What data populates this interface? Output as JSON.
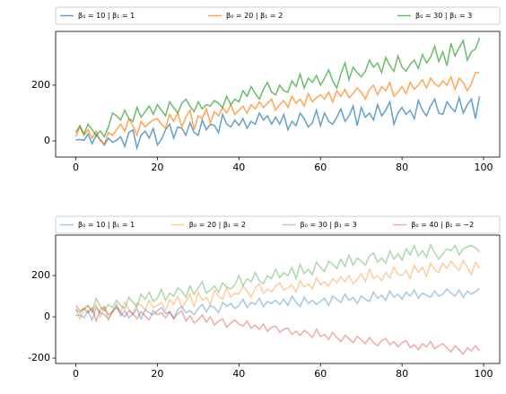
{
  "chart_data": [
    {
      "type": "line",
      "x": [
        0,
        1,
        2,
        3,
        4,
        5,
        6,
        7,
        8,
        9,
        10,
        11,
        12,
        13,
        14,
        15,
        16,
        17,
        18,
        19,
        20,
        21,
        22,
        23,
        24,
        25,
        26,
        27,
        28,
        29,
        30,
        31,
        32,
        33,
        34,
        35,
        36,
        37,
        38,
        39,
        40,
        41,
        42,
        43,
        44,
        45,
        46,
        47,
        48,
        49,
        50,
        51,
        52,
        53,
        54,
        55,
        56,
        57,
        58,
        59,
        60,
        61,
        62,
        63,
        64,
        65,
        66,
        67,
        68,
        69,
        70,
        71,
        72,
        73,
        74,
        75,
        76,
        77,
        78,
        79,
        80,
        81,
        82,
        83,
        84,
        85,
        86,
        87,
        88,
        89,
        90,
        91,
        92,
        93,
        94,
        95,
        96,
        97,
        98,
        99
      ],
      "series": [
        {
          "name": "β₀ = 10 | β₁ = 1",
          "color": "#1f77b4",
          "opacity": 0.7,
          "values": [
            3,
            5,
            2,
            25,
            -10,
            20,
            5,
            -15,
            10,
            -5,
            2,
            15,
            -20,
            30,
            40,
            -25,
            20,
            35,
            10,
            45,
            -15,
            5,
            40,
            60,
            10,
            50,
            45,
            20,
            65,
            30,
            20,
            75,
            40,
            60,
            55,
            30,
            95,
            60,
            50,
            75,
            55,
            80,
            45,
            70,
            60,
            100,
            75,
            90,
            60,
            85,
            60,
            95,
            40,
            70,
            55,
            100,
            80,
            50,
            65,
            110,
            55,
            100,
            70,
            60,
            85,
            115,
            70,
            90,
            125,
            55,
            120,
            85,
            100,
            75,
            130,
            90,
            110,
            140,
            60,
            100,
            120,
            95,
            110,
            80,
            145,
            110,
            90,
            125,
            150,
            100,
            95,
            140,
            120,
            105,
            155,
            100,
            130,
            150,
            80,
            160
          ]
        },
        {
          "name": "β₀ = 20 | β₁ = 2",
          "color": "#ff7f0e",
          "opacity": 0.7,
          "values": [
            15,
            50,
            20,
            40,
            10,
            35,
            0,
            -10,
            30,
            20,
            40,
            60,
            35,
            80,
            55,
            20,
            70,
            50,
            65,
            75,
            80,
            60,
            45,
            95,
            70,
            100,
            50,
            85,
            110,
            40,
            90,
            80,
            115,
            65,
            105,
            90,
            120,
            100,
            130,
            95,
            110,
            125,
            100,
            130,
            115,
            140,
            120,
            135,
            150,
            110,
            130,
            145,
            120,
            160,
            135,
            150,
            125,
            170,
            140,
            155,
            165,
            150,
            175,
            140,
            180,
            160,
            185,
            155,
            170,
            190,
            175,
            150,
            185,
            200,
            165,
            195,
            180,
            210,
            160,
            175,
            195,
            170,
            210,
            185,
            200,
            220,
            190,
            225,
            205,
            195,
            215,
            200,
            230,
            185,
            225,
            210,
            180,
            205,
            245,
            245
          ]
        },
        {
          "name": "β₀ = 30 | β₁ = 3",
          "color": "#2ca02c",
          "opacity": 0.7,
          "values": [
            30,
            55,
            25,
            60,
            40,
            20,
            35,
            15,
            50,
            100,
            90,
            75,
            110,
            80,
            70,
            120,
            85,
            105,
            125,
            95,
            130,
            110,
            90,
            140,
            120,
            100,
            135,
            150,
            125,
            105,
            140,
            115,
            130,
            125,
            145,
            135,
            120,
            160,
            130,
            150,
            140,
            180,
            160,
            195,
            170,
            150,
            185,
            210,
            175,
            165,
            200,
            180,
            175,
            215,
            195,
            240,
            190,
            225,
            210,
            235,
            200,
            225,
            255,
            215,
            190,
            240,
            280,
            220,
            265,
            245,
            230,
            250,
            290,
            265,
            280,
            245,
            300,
            270,
            250,
            305,
            265,
            250,
            275,
            290,
            260,
            310,
            280,
            300,
            340,
            285,
            320,
            270,
            350,
            305,
            335,
            360,
            290,
            320,
            330,
            370
          ]
        }
      ],
      "xlim": [
        -4.95,
        103.95
      ],
      "ylim": [
        -58,
        393
      ],
      "xticks": [
        0,
        20,
        40,
        60,
        80,
        100
      ],
      "yticks": [
        0,
        200
      ],
      "legend": "top"
    },
    {
      "type": "line",
      "x": [
        0,
        1,
        2,
        3,
        4,
        5,
        6,
        7,
        8,
        9,
        10,
        11,
        12,
        13,
        14,
        15,
        16,
        17,
        18,
        19,
        20,
        21,
        22,
        23,
        24,
        25,
        26,
        27,
        28,
        29,
        30,
        31,
        32,
        33,
        34,
        35,
        36,
        37,
        38,
        39,
        40,
        41,
        42,
        43,
        44,
        45,
        46,
        47,
        48,
        49,
        50,
        51,
        52,
        53,
        54,
        55,
        56,
        57,
        58,
        59,
        60,
        61,
        62,
        63,
        64,
        65,
        66,
        67,
        68,
        69,
        70,
        71,
        72,
        73,
        74,
        75,
        76,
        77,
        78,
        79,
        80,
        81,
        82,
        83,
        84,
        85,
        86,
        87,
        88,
        89,
        90,
        91,
        92,
        93,
        94,
        95,
        96,
        97,
        98,
        99
      ],
      "series": [
        {
          "name": "β₀ = 10 | β₁ = 1",
          "color": "#1f77b4",
          "opacity": 0.4,
          "values": [
            5,
            10,
            -5,
            30,
            -15,
            45,
            20,
            10,
            -10,
            25,
            60,
            5,
            30,
            -5,
            15,
            40,
            -10,
            35,
            20,
            10,
            30,
            45,
            15,
            25,
            -5,
            35,
            50,
            20,
            30,
            10,
            40,
            60,
            25,
            55,
            45,
            20,
            70,
            50,
            65,
            40,
            55,
            85,
            45,
            70,
            60,
            90,
            50,
            75,
            65,
            80,
            60,
            85,
            55,
            100,
            70,
            50,
            95,
            65,
            80,
            60,
            75,
            90,
            55,
            100,
            85,
            70,
            110,
            80,
            95,
            65,
            100,
            85,
            75,
            120,
            90,
            105,
            80,
            125,
            95,
            110,
            85,
            120,
            100,
            130,
            90,
            115,
            105,
            95,
            125,
            100,
            110,
            135,
            115,
            100,
            130,
            95,
            125,
            110,
            120,
            140
          ]
        },
        {
          "name": "β₀ = 20 | β₁ = 2",
          "color": "#ff7f0e",
          "opacity": 0.4,
          "values": [
            40,
            -10,
            35,
            55,
            20,
            60,
            0,
            45,
            -15,
            30,
            50,
            25,
            70,
            40,
            10,
            65,
            55,
            35,
            80,
            45,
            55,
            70,
            30,
            85,
            60,
            100,
            45,
            75,
            110,
            50,
            120,
            80,
            95,
            60,
            130,
            100,
            85,
            140,
            95,
            115,
            110,
            150,
            125,
            95,
            140,
            160,
            115,
            135,
            120,
            150,
            165,
            130,
            140,
            155,
            120,
            175,
            145,
            160,
            135,
            190,
            155,
            170,
            150,
            185,
            165,
            195,
            170,
            200,
            160,
            180,
            210,
            170,
            230,
            185,
            200,
            175,
            215,
            190,
            240,
            205,
            200,
            225,
            185,
            250,
            215,
            240,
            195,
            260,
            230,
            215,
            260,
            235,
            270,
            245,
            225,
            275,
            240,
            205,
            265,
            235
          ]
        },
        {
          "name": "β₀ = 30 | β₁ = 3",
          "color": "#2ca02c",
          "opacity": 0.4,
          "values": [
            35,
            20,
            40,
            55,
            25,
            90,
            50,
            30,
            60,
            45,
            80,
            55,
            40,
            95,
            70,
            50,
            110,
            85,
            120,
            75,
            90,
            135,
            80,
            115,
            100,
            140,
            125,
            95,
            150,
            110,
            140,
            170,
            115,
            130,
            150,
            120,
            165,
            145,
            135,
            155,
            200,
            150,
            185,
            170,
            215,
            175,
            160,
            200,
            185,
            230,
            190,
            215,
            200,
            240,
            185,
            255,
            210,
            230,
            205,
            265,
            240,
            220,
            270,
            255,
            235,
            280,
            245,
            300,
            250,
            285,
            270,
            250,
            295,
            310,
            265,
            285,
            260,
            320,
            280,
            305,
            275,
            330,
            300,
            345,
            295,
            320,
            290,
            350,
            310,
            280,
            305,
            330,
            320,
            345,
            300,
            330,
            340,
            345,
            335,
            315
          ]
        },
        {
          "name": "β₀ = 40 | β₁ = −2",
          "color": "#d62728",
          "opacity": 0.4,
          "values": [
            55,
            30,
            40,
            20,
            45,
            -20,
            35,
            50,
            10,
            25,
            45,
            20,
            0,
            30,
            15,
            -10,
            25,
            5,
            -15,
            30,
            10,
            20,
            -5,
            25,
            -10,
            15,
            30,
            -20,
            5,
            -30,
            -15,
            10,
            -25,
            0,
            -40,
            -20,
            -10,
            -50,
            -30,
            -15,
            -35,
            -45,
            -20,
            -55,
            -40,
            -60,
            -35,
            -70,
            -50,
            -45,
            -75,
            -60,
            -55,
            -85,
            -70,
            -90,
            -65,
            -80,
            -100,
            -60,
            -95,
            -85,
            -110,
            -75,
            -100,
            -120,
            -90,
            -105,
            -125,
            -95,
            -110,
            -130,
            -100,
            -125,
            -140,
            -115,
            -105,
            -135,
            -120,
            -145,
            -125,
            -115,
            -150,
            -135,
            -160,
            -130,
            -145,
            -120,
            -155,
            -140,
            -130,
            -150,
            -170,
            -140,
            -160,
            -180,
            -150,
            -165,
            -140,
            -165
          ]
        }
      ],
      "xlim": [
        -4.95,
        103.95
      ],
      "ylim": [
        -226,
        396
      ],
      "xticks": [
        0,
        20,
        40,
        60,
        80,
        100
      ],
      "yticks": [
        -200,
        0,
        200
      ],
      "legend": "top"
    }
  ]
}
